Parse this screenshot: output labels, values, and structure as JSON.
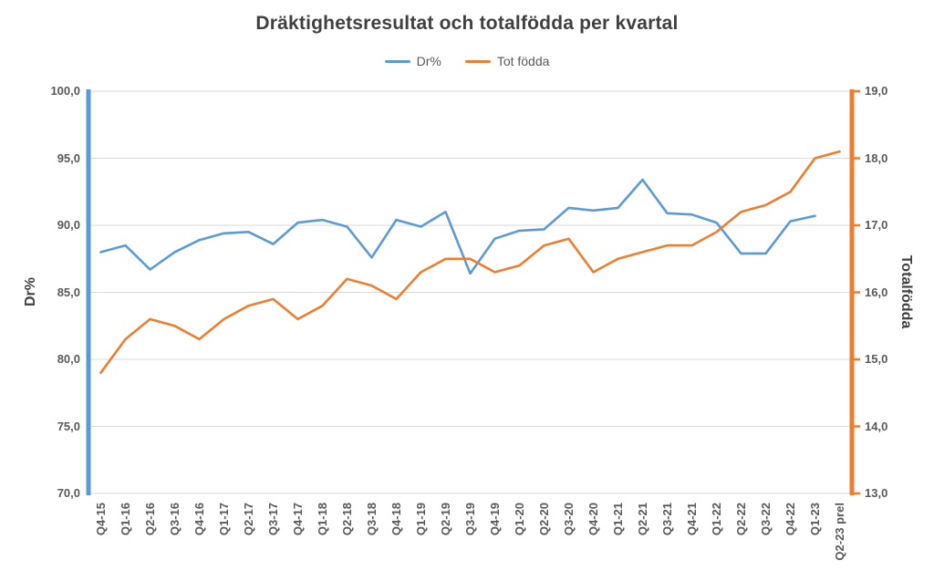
{
  "title": "Dräktighetsresultat och totalfödda per kvartal",
  "legend": [
    {
      "label": "Dr%",
      "color": "#5B9BD5"
    },
    {
      "label": "Tot födda",
      "color": "#ED7D31"
    }
  ],
  "left_axis": {
    "title": "Dr%",
    "min": 70,
    "max": 100,
    "step": 5,
    "tick_labels": [
      "100,0",
      "95,0",
      "90,0",
      "85,0",
      "80,0",
      "75,0",
      "70,0"
    ]
  },
  "right_axis": {
    "title": "Totalfödda",
    "min": 13,
    "max": 19,
    "step": 1,
    "tick_labels": [
      "19,0",
      "18,0",
      "17,0",
      "16,0",
      "15,0",
      "14,0",
      "13,0"
    ]
  },
  "colors": {
    "blue": "#5B9BD5",
    "orange": "#ED7D31",
    "gridline": "#D9D9D9",
    "title_text": "#404040",
    "tick_text": "#595959"
  },
  "chart_data": {
    "type": "line",
    "title": "Dräktighetsresultat och totalfödda per kvartal",
    "grid": true,
    "legend_position": "top",
    "left_ylabel": "Dr%",
    "right_ylabel": "Totalfödda",
    "left_ylim": [
      70,
      100
    ],
    "right_ylim": [
      13,
      19
    ],
    "categories": [
      "Q4-15",
      "Q1-16",
      "Q2-16",
      "Q3-16",
      "Q4-16",
      "Q1-17",
      "Q2-17",
      "Q3-17",
      "Q4-17",
      "Q1-18",
      "Q2-18",
      "Q3-18",
      "Q4-18",
      "Q1-19",
      "Q2-19",
      "Q3-19",
      "Q4-19",
      "Q1-20",
      "Q2-20",
      "Q3-20",
      "Q4-20",
      "Q1-21",
      "Q2-21",
      "Q3-21",
      "Q4-21",
      "Q1-22",
      "Q2-22",
      "Q3-22",
      "Q4-22",
      "Q1-23",
      "Q2-23 prel"
    ],
    "series": [
      {
        "name": "Dr%",
        "axis": "left",
        "color": "#5B9BD5",
        "values": [
          88.0,
          88.5,
          86.7,
          88.0,
          88.9,
          89.4,
          89.5,
          88.6,
          90.2,
          90.4,
          89.9,
          87.6,
          90.4,
          89.9,
          91.0,
          86.4,
          89.0,
          89.6,
          89.7,
          91.3,
          91.1,
          91.3,
          93.4,
          90.9,
          90.8,
          90.2,
          87.9,
          87.9,
          90.3,
          90.7,
          null
        ]
      },
      {
        "name": "Tot födda",
        "axis": "right",
        "color": "#ED7D31",
        "values": [
          14.8,
          15.3,
          15.6,
          15.5,
          15.3,
          15.6,
          15.8,
          15.9,
          15.6,
          15.8,
          16.2,
          16.1,
          15.9,
          16.3,
          16.5,
          16.5,
          16.3,
          16.4,
          16.7,
          16.8,
          16.3,
          16.5,
          16.6,
          16.7,
          16.7,
          16.9,
          17.2,
          17.3,
          17.5,
          18.0,
          18.1
        ]
      }
    ]
  }
}
